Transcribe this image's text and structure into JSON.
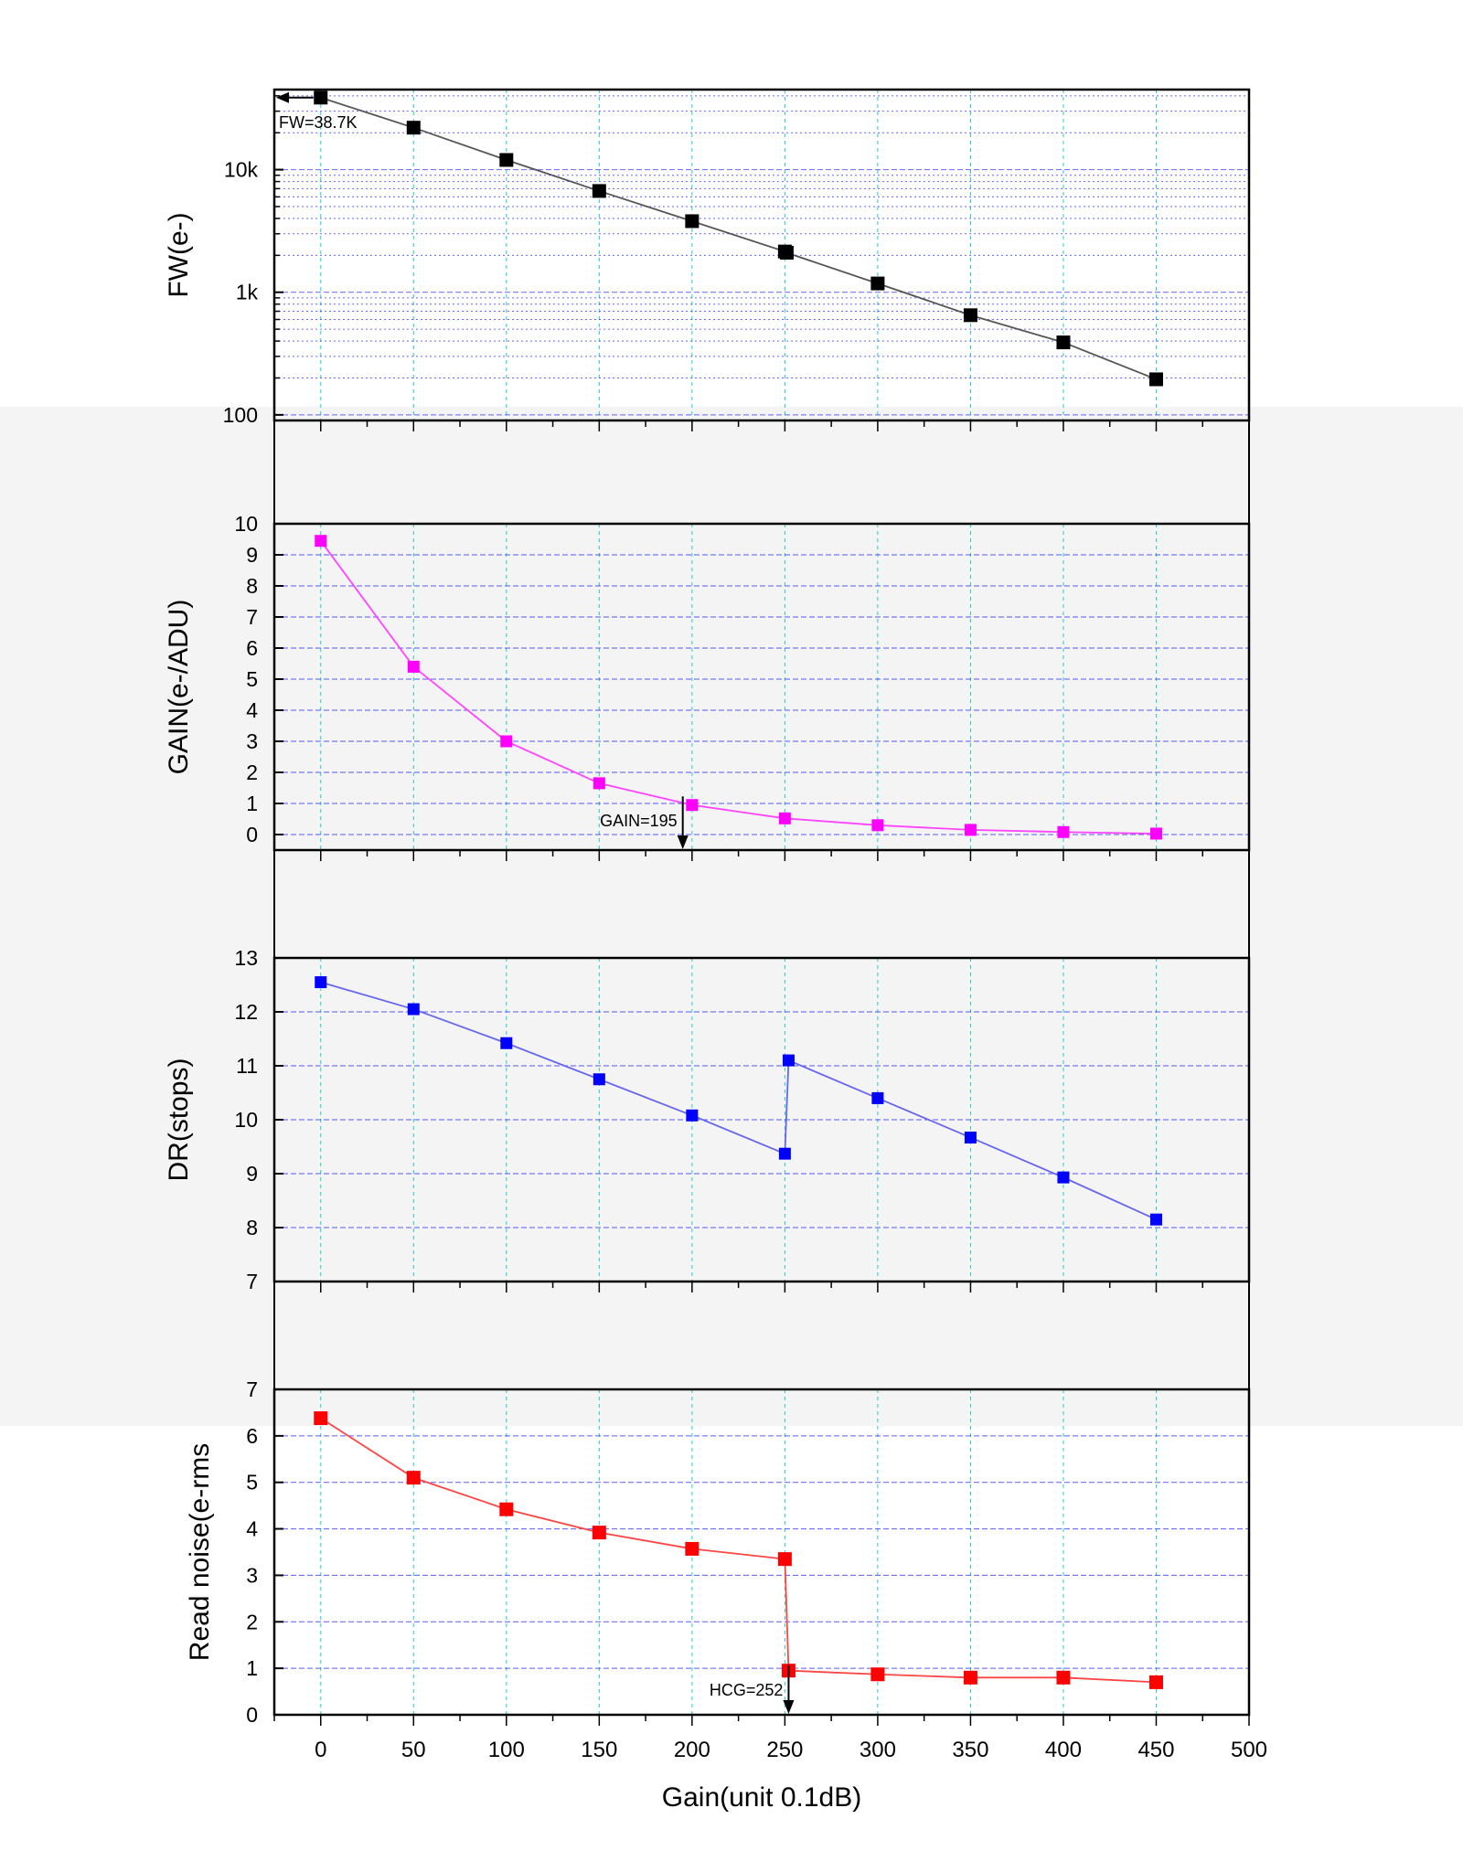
{
  "chart_data": [
    {
      "type": "line",
      "ylabel": "FW(e-)",
      "yscale": "log",
      "ylim": [
        90,
        45000
      ],
      "xlim": [
        -25,
        500
      ],
      "grid": true,
      "ytick_values": [
        100,
        1000,
        10000
      ],
      "ytick_labels": [
        "100",
        "1k",
        "10k"
      ],
      "color": "#000000",
      "line_color": "#555555",
      "x": [
        0,
        50,
        100,
        150,
        200,
        250,
        251,
        300,
        350,
        400,
        450
      ],
      "y": [
        38700,
        22000,
        12000,
        6700,
        3800,
        2150,
        2100,
        1180,
        650,
        390,
        195
      ],
      "annotation": {
        "text": "FW=38.7K",
        "x": 0,
        "y": 38700
      }
    },
    {
      "type": "line",
      "ylabel": "GAIN(e-/ADU)",
      "yscale": "linear",
      "ylim": [
        -0.5,
        10
      ],
      "xlim": [
        -25,
        500
      ],
      "grid": true,
      "ytick_values": [
        0,
        1,
        2,
        3,
        4,
        5,
        6,
        7,
        8,
        9,
        10
      ],
      "ytick_labels": [
        "0",
        "1",
        "2",
        "3",
        "4",
        "5",
        "6",
        "7",
        "8",
        "9",
        "10"
      ],
      "color": "#ff00ff",
      "line_color": "#ff44ff",
      "x": [
        0,
        50,
        100,
        150,
        200,
        250,
        300,
        350,
        400,
        450
      ],
      "y": [
        9.45,
        5.4,
        3.0,
        1.65,
        0.95,
        0.52,
        0.3,
        0.15,
        0.08,
        0.03
      ],
      "annotation": {
        "text": "GAIN=195",
        "x": 195,
        "y": 1.05
      }
    },
    {
      "type": "line",
      "ylabel": "DR(stops)",
      "yscale": "linear",
      "ylim": [
        7,
        13
      ],
      "xlim": [
        -25,
        500
      ],
      "grid": true,
      "ytick_values": [
        7,
        8,
        9,
        10,
        11,
        12,
        13
      ],
      "ytick_labels": [
        "7",
        "8",
        "9",
        "10",
        "11",
        "12",
        "13"
      ],
      "color": "#0000ff",
      "line_color": "#6666ee",
      "x": [
        0,
        50,
        100,
        150,
        200,
        250,
        252,
        300,
        350,
        400,
        450
      ],
      "y": [
        12.55,
        12.05,
        11.42,
        10.75,
        10.08,
        9.37,
        11.1,
        10.4,
        9.67,
        8.93,
        8.15
      ]
    },
    {
      "type": "line",
      "ylabel": "Read noise(e-rms",
      "xlabel": "Gain(unit 0.1dB)",
      "yscale": "linear",
      "ylim": [
        0,
        7
      ],
      "xlim": [
        -25,
        500
      ],
      "grid": true,
      "ytick_values": [
        0,
        1,
        2,
        3,
        4,
        5,
        6,
        7
      ],
      "ytick_labels": [
        "0",
        "1",
        "2",
        "3",
        "4",
        "5",
        "6",
        "7"
      ],
      "xtick_values": [
        0,
        50,
        100,
        150,
        200,
        250,
        300,
        350,
        400,
        450,
        500
      ],
      "xtick_labels": [
        "0",
        "50",
        "100",
        "150",
        "200",
        "250",
        "300",
        "350",
        "400",
        "450",
        "500"
      ],
      "color": "#ff0000",
      "line_color": "#ff4444",
      "x": [
        0,
        50,
        100,
        150,
        200,
        250,
        252,
        300,
        350,
        400,
        450
      ],
      "y": [
        6.38,
        5.1,
        4.42,
        3.92,
        3.57,
        3.35,
        0.95,
        0.87,
        0.8,
        0.8,
        0.7
      ],
      "annotation": {
        "text": "HCG=252",
        "x": 252,
        "y": 0.95
      }
    }
  ]
}
